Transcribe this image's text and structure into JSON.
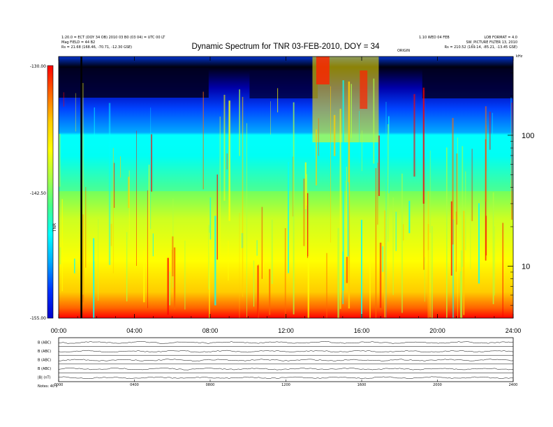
{
  "chart_data": {
    "type": "heatmap",
    "title": "Dynamic Spectrum for TNR 03-FEB-2010, DOY = 34",
    "xlabel": "",
    "ylabel": "",
    "x_ticks": [
      "00:00",
      "04:00",
      "08:00",
      "12:00",
      "16:00",
      "20:00",
      "24:00"
    ],
    "x_range_hours": [
      0,
      24
    ],
    "y_scale": "log",
    "y_unit": "kHz",
    "y_ticks": [
      10,
      100
    ],
    "y_tick_labels": [
      "10",
      "100"
    ],
    "y_range": [
      4,
      400
    ],
    "colorbar": {
      "label": "TNR",
      "ticks": [
        "-130.00",
        "-142.50",
        "-155.00"
      ],
      "min": -155.0,
      "max": -130.0
    },
    "colormap": [
      "#0000cc",
      "#0033ff",
      "#00aaff",
      "#00ffff",
      "#44ff88",
      "#aaff44",
      "#ffff00",
      "#ffcc00",
      "#ff6600",
      "#ff0000"
    ],
    "marker_line_hours": 1.2,
    "header_left": [
      "1:20.0 = ECT (DOY 34 OB) 2010 03 B0 (03 04) = UTC 00 LT",
      "Mag FIELD = 44 B2",
      "Rs = 21.68 (168.46, -70.71, -12.30 GSE)"
    ],
    "header_right": [
      "1.10 WED 04 FEB",
      "LOB FORMAT = 4.0",
      "SW_PICTURE FILTER 13, 2010",
      "Rs = 210.52 (169.14, -85.21, -13.45 GSE)"
    ],
    "header_mid": "ORIGIN",
    "lower_panels": {
      "labels": [
        "B (ABC)",
        "B (ABC)",
        "B (ABC)",
        "B (ABC)",
        "|B| (nT)"
      ],
      "x_ticks": [
        "0000",
        "0400",
        "0800",
        "1200",
        "1600",
        "2000",
        "2400"
      ],
      "footer": "Notes: 40 s"
    }
  }
}
